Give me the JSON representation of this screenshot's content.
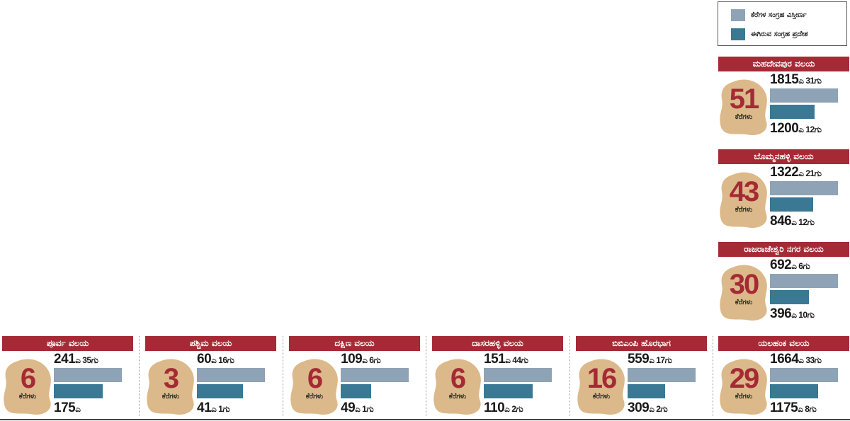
{
  "legend": {
    "total_label": "ಕೆರೆಗಳ ಸಂಗ್ರಹ ವಿಸ್ತೀರ್ಣ",
    "current_label": "ಈಗಿರುವ ಸಂಗ್ರಹ ಪ್ರದೇಶ"
  },
  "colors": {
    "header": "#a52a35",
    "total_bar": "#8ea3b5",
    "current_bar": "#3a7894",
    "blob": "#dcb98a",
    "count": "#a52a35"
  },
  "lake_unit": "ಕೆರೆಗಳು",
  "chart_data": {
    "type": "bar",
    "orientation": "horizontal",
    "categories": [
      "ಮಹದೇವಪುರ ವಲಯ",
      "ಬೊಮ್ಮನಹಳ್ಳಿ ವಲಯ",
      "ರಾಜರಾಜೇಶ್ವರಿ ನಗರ ವಲಯ",
      "ಪೂರ್ವ ವಲಯ",
      "ಪಶ್ಚಿಮ ವಲಯ",
      "ದಕ್ಷಿಣ ವಲಯ",
      "ದಾಸರಹಳ್ಳಿ ವಲಯ",
      "ಬಿಬಿಎಂಪಿ ಹೊರಭಾಗ",
      "ಯಲಹಂಕ ವಲಯ"
    ],
    "lake_counts": [
      51,
      43,
      30,
      6,
      3,
      6,
      6,
      16,
      29
    ],
    "series": [
      {
        "name": "ಕೆರೆಗಳ ಸಂಗ್ರಹ ವಿಸ್ತೀರ್ಣ",
        "acres": [
          1815,
          1322,
          692,
          241,
          60,
          109,
          151,
          559,
          1664
        ],
        "guntas": [
          31,
          21,
          6,
          35,
          16,
          6,
          44,
          17,
          33
        ],
        "labels": [
          [
            "1815",
            "ಎ 31ಗು"
          ],
          [
            "1322",
            "ಎ 21ಗು"
          ],
          [
            "692",
            "ಎ 6ಗು"
          ],
          [
            "241",
            "ಎ 35ಗು"
          ],
          [
            "60",
            "ಎ 16ಗು"
          ],
          [
            "109",
            "ಎ 6ಗು"
          ],
          [
            "151",
            "ಎ 44ಗು"
          ],
          [
            "559",
            "ಎ 17ಗು"
          ],
          [
            "1664",
            "ಎ 33ಗು"
          ]
        ]
      },
      {
        "name": "ಈಗಿರುವ ಸಂಗ್ರಹ ಪ್ರದೇಶ",
        "acres": [
          1200,
          846,
          396,
          175,
          41,
          49,
          110,
          309,
          1175
        ],
        "guntas": [
          12,
          12,
          10,
          null,
          1,
          1,
          2,
          2,
          8
        ],
        "labels": [
          [
            "1200",
            "ಎ 12ಗು"
          ],
          [
            "846",
            "ಎ 12ಗು"
          ],
          [
            "396",
            "ಎ 10ಗು"
          ],
          [
            "175",
            "ಎ"
          ],
          [
            "41",
            "ಎ 1ಗು"
          ],
          [
            "49",
            "ಎ 1ಗು"
          ],
          [
            "110",
            "ಎ 2ಗು"
          ],
          [
            "309",
            "ಎ 2ಗು"
          ],
          [
            "1175",
            "ಎ 8ಗು"
          ]
        ]
      }
    ]
  }
}
